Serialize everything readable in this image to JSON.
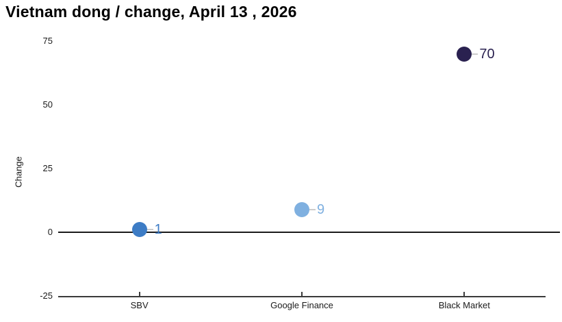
{
  "page": {
    "background": "#ffffff"
  },
  "chart_data": {
    "type": "scatter",
    "title": "Vietnam dong / change, April 13 , 2026",
    "ylabel": "Change",
    "xlabel": "",
    "categories": [
      "SBV",
      "Google Finance",
      "Black Market"
    ],
    "values": [
      1,
      9,
      70
    ],
    "value_labels": [
      "1",
      "9",
      "70"
    ],
    "point_colors": [
      "#3d7cc5",
      "#7fb0e0",
      "#2a2150"
    ],
    "label_colors": [
      "#3d7cc5",
      "#7fb0e0",
      "#2a2150"
    ],
    "yticks": [
      75,
      50,
      25,
      0,
      -25
    ],
    "ylim": [
      -25,
      75
    ],
    "grid": false,
    "legend": false,
    "zero_line": true,
    "axis_color": "#3a3a3a",
    "text_color": "#1a1a1a",
    "zero_line_color": "#1a1a1a",
    "connector_color": "#cccccc"
  }
}
